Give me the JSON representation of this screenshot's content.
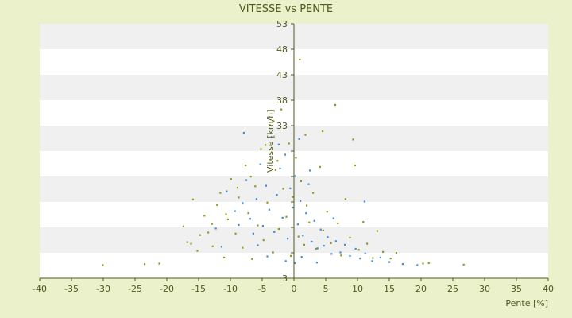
{
  "chart_data": {
    "type": "scatter",
    "title": "VITESSE vs PENTE",
    "xlabel": "Pente [%]",
    "ylabel": "Vitesse [km/h]",
    "xlim": [
      -40,
      40
    ],
    "ylim": [
      3,
      53
    ],
    "x_ticks": [
      -40,
      -35,
      -30,
      -25,
      -20,
      -15,
      -10,
      -5,
      0,
      5,
      10,
      15,
      20,
      25,
      30,
      35,
      40
    ],
    "y_ticks": [
      3,
      8,
      13,
      18,
      23,
      28,
      33,
      38,
      43,
      48,
      53
    ],
    "x_tick_labels": [
      "-40",
      "-35",
      "-30",
      "-25",
      "-20",
      "-15",
      "-10",
      "-5",
      "0",
      "5",
      "10",
      "15",
      "20",
      "25",
      "30",
      "35",
      "40"
    ],
    "y_tick_labels": [
      "3",
      "",
      "",
      "",
      "",
      "",
      "33",
      "38",
      "43",
      "48",
      "53"
    ],
    "grid": "horizontal bands",
    "legend": "none",
    "colors": {
      "background": "#ebf1cb",
      "plot_band_light": "#ffffff",
      "plot_band_dark": "#f0f0f0",
      "axis": "#4d5a1e",
      "series_1": "#8f9a1a",
      "series_2": "#3f8fd6"
    },
    "series": [
      {
        "color": "#8f9a1a",
        "points": [
          [
            -30.1,
            5.6
          ],
          [
            -23.5,
            5.8
          ],
          [
            -21.2,
            5.9
          ],
          [
            -17.4,
            13.2
          ],
          [
            -16.8,
            10.1
          ],
          [
            -15.9,
            18.5
          ],
          [
            -15.2,
            8.4
          ],
          [
            -14.1,
            15.3
          ],
          [
            -13.5,
            12.0
          ],
          [
            -12.8,
            9.3
          ],
          [
            -12.1,
            17.4
          ],
          [
            -11.6,
            19.8
          ],
          [
            -11.0,
            7.1
          ],
          [
            -10.4,
            14.6
          ],
          [
            -9.9,
            22.5
          ],
          [
            -9.2,
            11.8
          ],
          [
            -8.7,
            18.9
          ],
          [
            -8.1,
            9.0
          ],
          [
            -7.6,
            25.2
          ],
          [
            -7.2,
            15.8
          ],
          [
            -6.6,
            6.8
          ],
          [
            -6.1,
            21.1
          ],
          [
            -5.7,
            13.4
          ],
          [
            -5.2,
            28.4
          ],
          [
            -4.8,
            10.5
          ],
          [
            -4.2,
            17.9
          ],
          [
            -3.8,
            33.1
          ],
          [
            -3.3,
            8.1
          ],
          [
            -2.9,
            24.3
          ],
          [
            -2.4,
            12.7
          ],
          [
            -2.0,
            36.2
          ],
          [
            -1.7,
            20.6
          ],
          [
            -1.2,
            15.1
          ],
          [
            -0.8,
            29.5
          ],
          [
            -0.5,
            7.4
          ],
          [
            -0.2,
            19.0
          ],
          [
            0.3,
            26.7
          ],
          [
            0.7,
            11.2
          ],
          [
            1.1,
            22.1
          ],
          [
            1.6,
            9.6
          ],
          [
            2.0,
            17.3
          ],
          [
            2.4,
            14.0
          ],
          [
            3.0,
            19.8
          ],
          [
            3.5,
            8.8
          ],
          [
            4.1,
            24.9
          ],
          [
            4.6,
            12.4
          ],
          [
            5.2,
            16.1
          ],
          [
            5.8,
            9.9
          ],
          [
            6.5,
            37.1
          ],
          [
            6.9,
            13.8
          ],
          [
            7.4,
            7.5
          ],
          [
            8.1,
            18.6
          ],
          [
            8.8,
            11.0
          ],
          [
            9.3,
            30.3
          ],
          [
            9.6,
            25.2
          ],
          [
            10.2,
            8.6
          ],
          [
            10.9,
            14.1
          ],
          [
            11.5,
            9.8
          ],
          [
            12.4,
            7.0
          ],
          [
            13.1,
            12.3
          ],
          [
            14.0,
            8.2
          ],
          [
            15.2,
            6.9
          ],
          [
            16.1,
            8.0
          ],
          [
            20.3,
            5.9
          ],
          [
            21.2,
            6.0
          ],
          [
            26.7,
            5.7
          ],
          [
            0.9,
            46.0
          ],
          [
            -4.5,
            29.2
          ],
          [
            -3.2,
            33.8
          ],
          [
            1.8,
            31.2
          ],
          [
            4.5,
            31.9
          ],
          [
            -2.6,
            26.1
          ],
          [
            -6.8,
            23.0
          ],
          [
            -8.9,
            20.8
          ],
          [
            -10.7,
            15.6
          ],
          [
            -12.9,
            13.7
          ],
          [
            -14.8,
            11.5
          ],
          [
            -16.2,
            9.8
          ]
        ]
      },
      {
        "color": "#3f8fd6",
        "points": [
          [
            -10.6,
            20.1
          ],
          [
            -9.3,
            16.2
          ],
          [
            -8.7,
            13.5
          ],
          [
            -8.1,
            17.8
          ],
          [
            -7.5,
            22.3
          ],
          [
            -6.9,
            14.7
          ],
          [
            -6.4,
            11.8
          ],
          [
            -5.9,
            18.6
          ],
          [
            -5.3,
            25.4
          ],
          [
            -4.9,
            13.3
          ],
          [
            -4.4,
            21.2
          ],
          [
            -3.9,
            16.5
          ],
          [
            -3.5,
            30.8
          ],
          [
            -3.1,
            12.1
          ],
          [
            -2.7,
            19.4
          ],
          [
            -2.2,
            24.6
          ],
          [
            -1.8,
            14.9
          ],
          [
            -1.4,
            27.3
          ],
          [
            -1.0,
            10.8
          ],
          [
            -0.6,
            20.7
          ],
          [
            -0.2,
            16.9
          ],
          [
            0.2,
            23.1
          ],
          [
            0.6,
            13.6
          ],
          [
            1.0,
            18.2
          ],
          [
            1.4,
            11.4
          ],
          [
            1.9,
            15.8
          ],
          [
            2.3,
            21.5
          ],
          [
            2.8,
            10.2
          ],
          [
            3.2,
            14.3
          ],
          [
            3.7,
            8.9
          ],
          [
            4.2,
            12.6
          ],
          [
            4.7,
            9.4
          ],
          [
            5.3,
            11.1
          ],
          [
            5.9,
            7.8
          ],
          [
            6.6,
            10.3
          ],
          [
            7.3,
            8.1
          ],
          [
            8.0,
            9.6
          ],
          [
            8.8,
            7.4
          ],
          [
            9.7,
            8.8
          ],
          [
            10.4,
            6.9
          ],
          [
            11.2,
            7.9
          ],
          [
            12.3,
            6.4
          ],
          [
            13.6,
            7.1
          ],
          [
            15.0,
            6.2
          ],
          [
            17.1,
            5.8
          ],
          [
            19.4,
            5.6
          ],
          [
            -7.9,
            31.6
          ],
          [
            -2.4,
            29.3
          ],
          [
            0.8,
            30.4
          ],
          [
            2.5,
            24.2
          ],
          [
            6.2,
            14.8
          ],
          [
            11.1,
            18.1
          ],
          [
            -11.4,
            9.2
          ],
          [
            -12.3,
            12.8
          ],
          [
            -4.2,
            7.3
          ],
          [
            -1.3,
            6.4
          ],
          [
            0.1,
            6.0
          ],
          [
            1.2,
            7.2
          ],
          [
            3.6,
            6.1
          ],
          [
            -5.7,
            9.5
          ]
        ]
      }
    ]
  }
}
